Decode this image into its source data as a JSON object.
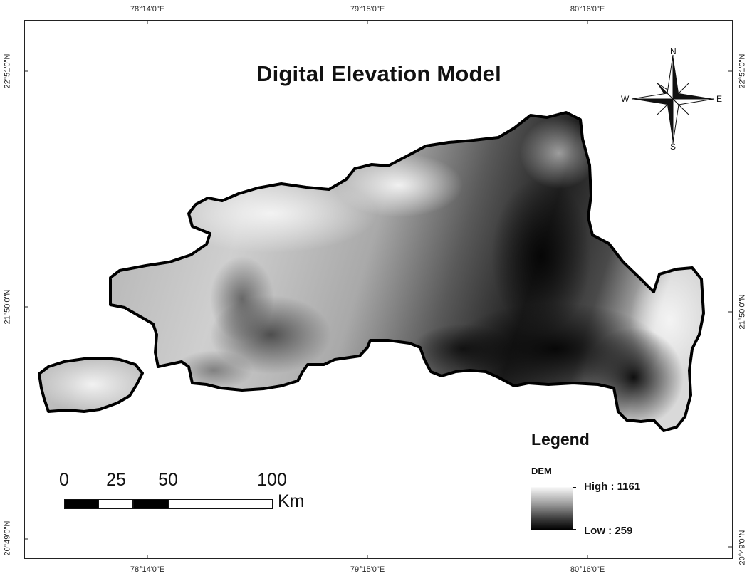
{
  "map": {
    "title": "Digital Elevation Model",
    "graticule": {
      "top_labels": [
        "78°14'0\"E",
        "79°15'0\"E",
        "80°16'0\"E"
      ],
      "bottom_labels": [
        "78°14'0\"E",
        "79°15'0\"E",
        "80°16'0\"E"
      ],
      "left_labels": [
        "22°51'0\"N",
        "21°50'0\"N",
        "20°49'0\"N"
      ],
      "right_labels": [
        "22°51'0\"N",
        "21°50'0\"N",
        "20°49'0\"N"
      ]
    },
    "north_arrow": {
      "n": "N",
      "s": "S",
      "e": "E",
      "w": "W"
    },
    "legend": {
      "title": "Legend",
      "layer": "DEM",
      "high_label": "High : 1161",
      "low_label": "Low : 259",
      "high_value": 1161,
      "low_value": 259
    },
    "scale_bar": {
      "ticks": [
        "0",
        "25",
        "50",
        "100"
      ],
      "unit": "Km"
    },
    "colors": {
      "high": "#fafafa",
      "low": "#000000",
      "frame": "#222222"
    }
  }
}
